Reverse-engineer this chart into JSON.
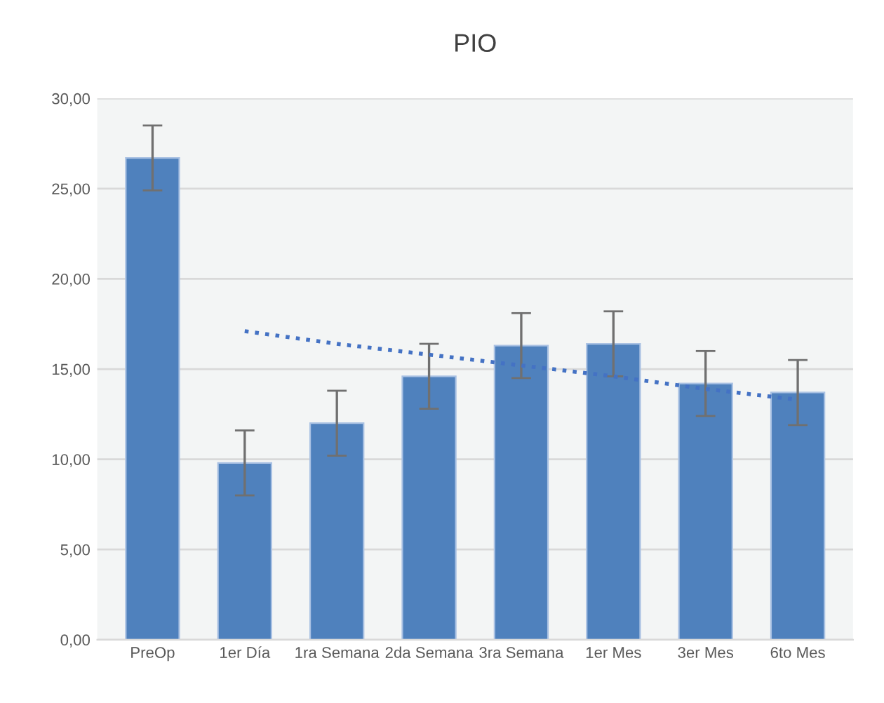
{
  "chart_data": {
    "type": "bar",
    "title": "PIO",
    "categories": [
      "PreOp",
      "1er Día",
      "1ra Semana",
      "2da Semana",
      "3ra Semana",
      "1er Mes",
      "3er Mes",
      "6to Mes"
    ],
    "series": [
      {
        "color": "#4f81bd",
        "values": [
          26.7,
          9.8,
          12.0,
          14.6,
          16.3,
          16.4,
          14.2,
          13.7
        ],
        "errors": [
          1.8,
          1.8,
          1.8,
          1.8,
          1.8,
          1.8,
          1.8,
          1.8
        ]
      },
      {
        "type": "line",
        "color": "#4472c4",
        "values": [
          null,
          17.1,
          16.4,
          15.8,
          15.2,
          14.6,
          13.9,
          13.3
        ],
        "line_style": "dotted",
        "marker": "none"
      }
    ],
    "ylim": [
      0,
      30
    ],
    "yticks": [
      {
        "value": 0,
        "label": "0,00"
      },
      {
        "value": 5,
        "label": "5,00"
      },
      {
        "value": 10,
        "label": "10,00"
      },
      {
        "value": 15,
        "label": "15,00"
      },
      {
        "value": 20,
        "label": "20,00"
      },
      {
        "value": 25,
        "label": "25,00"
      },
      {
        "value": 30,
        "label": "30,00"
      }
    ],
    "grid": "y"
  }
}
